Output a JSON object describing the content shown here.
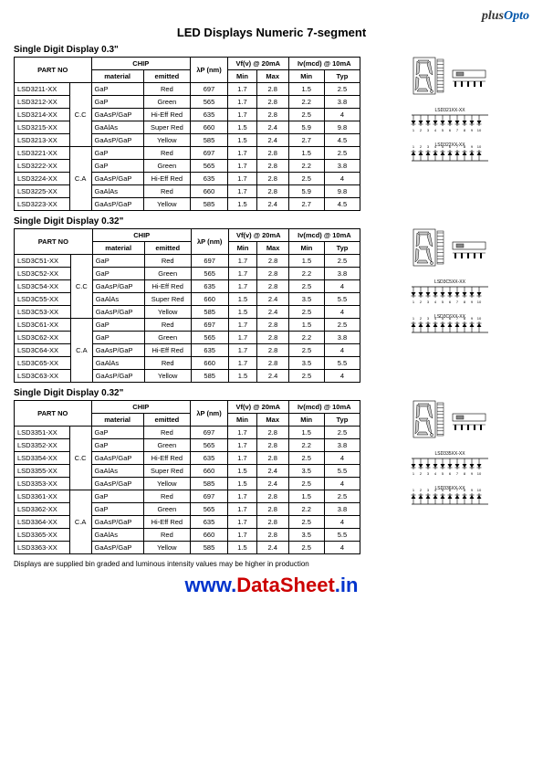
{
  "logo_text1": "plus",
  "logo_text2": "Opto",
  "main_title": "LED Displays Numeric 7-segment",
  "headers": {
    "partno": "PART NO",
    "chip": "CHIP",
    "lambda": "λP (nm)",
    "vf": "Vf(v) @ 20mA",
    "iv": "Iv(mcd) @ 10mA",
    "material": "material",
    "emitted": "emitted",
    "min": "Min",
    "max": "Max",
    "typ": "Typ"
  },
  "cc_label": "C.C",
  "ca_label": "C.A",
  "sections": [
    {
      "title": "Single Digit Display 0.3\"",
      "rows": [
        {
          "part": "LSD3211-XX",
          "material": "GaP",
          "emitted": "Red",
          "nm": "697",
          "vfmin": "1.7",
          "vfmax": "2.8",
          "ivmin": "1.5",
          "ivtyp": "2.5"
        },
        {
          "part": "LSD3212-XX",
          "material": "GaP",
          "emitted": "Green",
          "nm": "565",
          "vfmin": "1.7",
          "vfmax": "2.8",
          "ivmin": "2.2",
          "ivtyp": "3.8"
        },
        {
          "part": "LSD3214-XX",
          "material": "GaAsP/GaP",
          "emitted": "Hi-Eff Red",
          "nm": "635",
          "vfmin": "1.7",
          "vfmax": "2.8",
          "ivmin": "2.5",
          "ivtyp": "4"
        },
        {
          "part": "LSD3215-XX",
          "material": "GaAlAs",
          "emitted": "Super Red",
          "nm": "660",
          "vfmin": "1.5",
          "vfmax": "2.4",
          "ivmin": "5.9",
          "ivtyp": "9.8"
        },
        {
          "part": "LSD3213-XX",
          "material": "GaAsP/GaP",
          "emitted": "Yellow",
          "nm": "585",
          "vfmin": "1.5",
          "vfmax": "2.4",
          "ivmin": "2.7",
          "ivtyp": "4.5"
        },
        {
          "part": "LSD3221-XX",
          "material": "GaP",
          "emitted": "Red",
          "nm": "697",
          "vfmin": "1.7",
          "vfmax": "2.8",
          "ivmin": "1.5",
          "ivtyp": "2.5"
        },
        {
          "part": "LSD3222-XX",
          "material": "GaP",
          "emitted": "Green",
          "nm": "565",
          "vfmin": "1.7",
          "vfmax": "2.8",
          "ivmin": "2.2",
          "ivtyp": "3.8"
        },
        {
          "part": "LSD3224-XX",
          "material": "GaAsP/GaP",
          "emitted": "Hi-Eff Red",
          "nm": "635",
          "vfmin": "1.7",
          "vfmax": "2.8",
          "ivmin": "2.5",
          "ivtyp": "4"
        },
        {
          "part": "LSD3225-XX",
          "material": "GaAlAs",
          "emitted": "Red",
          "nm": "660",
          "vfmin": "1.7",
          "vfmax": "2.8",
          "ivmin": "5.9",
          "ivtyp": "9.8"
        },
        {
          "part": "LSD3223-XX",
          "material": "GaAsP/GaP",
          "emitted": "Yellow",
          "nm": "585",
          "vfmin": "1.5",
          "vfmax": "2.4",
          "ivmin": "2.7",
          "ivtyp": "4.5"
        }
      ],
      "diag_labels": {
        "cc": "LSD321XX-XX",
        "ca": "LSD322XX-XX"
      }
    },
    {
      "title": "Single Digit Display 0.32\"",
      "rows": [
        {
          "part": "LSD3C51-XX",
          "material": "GaP",
          "emitted": "Red",
          "nm": "697",
          "vfmin": "1.7",
          "vfmax": "2.8",
          "ivmin": "1.5",
          "ivtyp": "2.5"
        },
        {
          "part": "LSD3C52-XX",
          "material": "GaP",
          "emitted": "Green",
          "nm": "565",
          "vfmin": "1.7",
          "vfmax": "2.8",
          "ivmin": "2.2",
          "ivtyp": "3.8"
        },
        {
          "part": "LSD3C54-XX",
          "material": "GaAsP/GaP",
          "emitted": "Hi-Eff Red",
          "nm": "635",
          "vfmin": "1.7",
          "vfmax": "2.8",
          "ivmin": "2.5",
          "ivtyp": "4"
        },
        {
          "part": "LSD3C55-XX",
          "material": "GaAlAs",
          "emitted": "Super Red",
          "nm": "660",
          "vfmin": "1.5",
          "vfmax": "2.4",
          "ivmin": "3.5",
          "ivtyp": "5.5"
        },
        {
          "part": "LSD3C53-XX",
          "material": "GaAsP/GaP",
          "emitted": "Yellow",
          "nm": "585",
          "vfmin": "1.5",
          "vfmax": "2.4",
          "ivmin": "2.5",
          "ivtyp": "4"
        },
        {
          "part": "LSD3C61-XX",
          "material": "GaP",
          "emitted": "Red",
          "nm": "697",
          "vfmin": "1.7",
          "vfmax": "2.8",
          "ivmin": "1.5",
          "ivtyp": "2.5"
        },
        {
          "part": "LSD3C62-XX",
          "material": "GaP",
          "emitted": "Green",
          "nm": "565",
          "vfmin": "1.7",
          "vfmax": "2.8",
          "ivmin": "2.2",
          "ivtyp": "3.8"
        },
        {
          "part": "LSD3C64-XX",
          "material": "GaAsP/GaP",
          "emitted": "Hi-Eff Red",
          "nm": "635",
          "vfmin": "1.7",
          "vfmax": "2.8",
          "ivmin": "2.5",
          "ivtyp": "4"
        },
        {
          "part": "LSD3C65-XX",
          "material": "GaAlAs",
          "emitted": "Red",
          "nm": "660",
          "vfmin": "1.7",
          "vfmax": "2.8",
          "ivmin": "3.5",
          "ivtyp": "5.5"
        },
        {
          "part": "LSD3C63-XX",
          "material": "GaAsP/GaP",
          "emitted": "Yellow",
          "nm": "585",
          "vfmin": "1.5",
          "vfmax": "2.4",
          "ivmin": "2.5",
          "ivtyp": "4"
        }
      ],
      "diag_labels": {
        "cc": "LSD3C5XX-XX",
        "ca": "LSD3C6XX-XX"
      }
    },
    {
      "title": "Single Digit Display 0.32\"",
      "rows": [
        {
          "part": "LSD3351-XX",
          "material": "GaP",
          "emitted": "Red",
          "nm": "697",
          "vfmin": "1.7",
          "vfmax": "2.8",
          "ivmin": "1.5",
          "ivtyp": "2.5"
        },
        {
          "part": "LSD3352-XX",
          "material": "GaP",
          "emitted": "Green",
          "nm": "565",
          "vfmin": "1.7",
          "vfmax": "2.8",
          "ivmin": "2.2",
          "ivtyp": "3.8"
        },
        {
          "part": "LSD3354-XX",
          "material": "GaAsP/GaP",
          "emitted": "Hi-Eff Red",
          "nm": "635",
          "vfmin": "1.7",
          "vfmax": "2.8",
          "ivmin": "2.5",
          "ivtyp": "4"
        },
        {
          "part": "LSD3355-XX",
          "material": "GaAlAs",
          "emitted": "Super Red",
          "nm": "660",
          "vfmin": "1.5",
          "vfmax": "2.4",
          "ivmin": "3.5",
          "ivtyp": "5.5"
        },
        {
          "part": "LSD3353-XX",
          "material": "GaAsP/GaP",
          "emitted": "Yellow",
          "nm": "585",
          "vfmin": "1.5",
          "vfmax": "2.4",
          "ivmin": "2.5",
          "ivtyp": "4"
        },
        {
          "part": "LSD3361-XX",
          "material": "GaP",
          "emitted": "Red",
          "nm": "697",
          "vfmin": "1.7",
          "vfmax": "2.8",
          "ivmin": "1.5",
          "ivtyp": "2.5"
        },
        {
          "part": "LSD3362-XX",
          "material": "GaP",
          "emitted": "Green",
          "nm": "565",
          "vfmin": "1.7",
          "vfmax": "2.8",
          "ivmin": "2.2",
          "ivtyp": "3.8"
        },
        {
          "part": "LSD3364-XX",
          "material": "GaAsP/GaP",
          "emitted": "Hi-Eff Red",
          "nm": "635",
          "vfmin": "1.7",
          "vfmax": "2.8",
          "ivmin": "2.5",
          "ivtyp": "4"
        },
        {
          "part": "LSD3365-XX",
          "material": "GaAlAs",
          "emitted": "Red",
          "nm": "660",
          "vfmin": "1.7",
          "vfmax": "2.8",
          "ivmin": "3.5",
          "ivtyp": "5.5"
        },
        {
          "part": "LSD3363-XX",
          "material": "GaAsP/GaP",
          "emitted": "Yellow",
          "nm": "585",
          "vfmin": "1.5",
          "vfmax": "2.4",
          "ivmin": "2.5",
          "ivtyp": "4"
        }
      ],
      "diag_labels": {
        "cc": "LSD335XX-XX",
        "ca": "LSD336XX-XX"
      }
    }
  ],
  "footnote": "Displays are supplied bin graded and luminous intensity values may be higher in production",
  "watermark": {
    "www": "www.",
    "ds": "DataSheet",
    "in": ".in"
  }
}
